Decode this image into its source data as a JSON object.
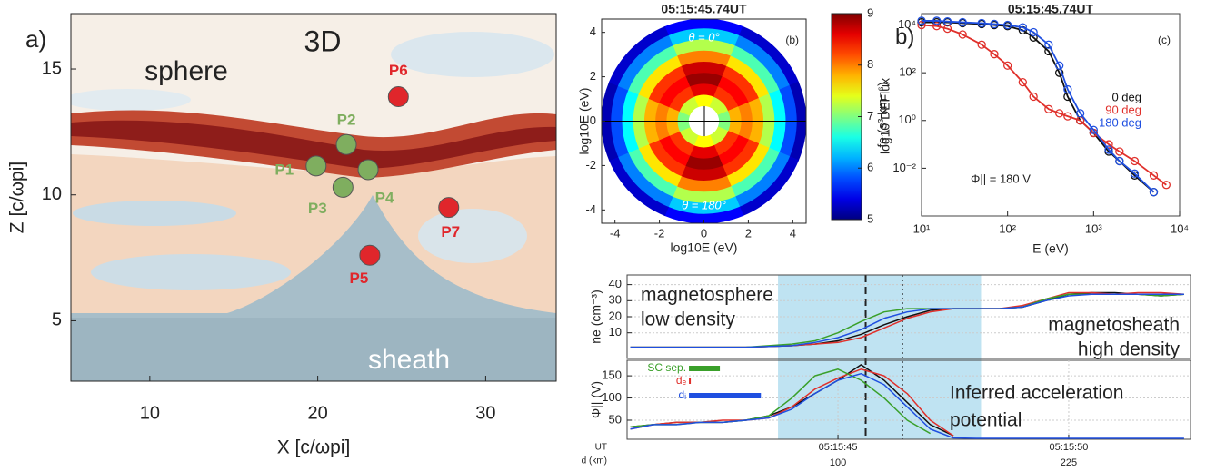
{
  "chart_data": [
    {
      "type": "scatter",
      "panel_label": "a)",
      "annotations": [
        "3D",
        "sphere",
        "sheath"
      ],
      "xlabel": "X [c/ωpi]",
      "ylabel": "Z [c/ωpi]",
      "xlim": [
        5.3,
        34.2
      ],
      "ylim": [
        2.6,
        17.2
      ],
      "xticks": [
        10,
        20,
        30
      ],
      "yticks": [
        5,
        10,
        15
      ],
      "labels": [
        "P1",
        "P2",
        "P3",
        "P4",
        "P5",
        "P6",
        "P7"
      ],
      "x": [
        19.9,
        21.7,
        21.5,
        23.0,
        23.1,
        24.8,
        27.8
      ],
      "y": [
        11.15,
        12.0,
        10.3,
        11.0,
        7.6,
        13.9,
        9.5
      ],
      "colors": [
        "#7fae5f",
        "#7fae5f",
        "#7fae5f",
        "#7fae5f",
        "#e0262b",
        "#e0262b",
        "#e0262b"
      ]
    },
    {
      "type": "polar",
      "title": "05:15:45.74UT",
      "tag": "(b)",
      "annotations": [
        "θ = 0°",
        "θ = 180°"
      ],
      "xlabel": "log10E (eV)",
      "ylabel": "log10E (eV)",
      "xlim": [
        -4.6,
        4.6
      ],
      "ylim": [
        -4.6,
        4.6
      ],
      "xticks": [
        -4,
        -2,
        0,
        2,
        4
      ],
      "yticks": [
        -4,
        -2,
        0,
        2,
        4
      ],
      "r": [
        0.7,
        1.2,
        1.7,
        2.2,
        2.7,
        3.2,
        3.7,
        4.2,
        4.6
      ],
      "values": [
        [
          7.5,
          7.3,
          7,
          7.3,
          7.5,
          7.3,
          7,
          7.3
        ],
        [
          8.6,
          8.3,
          7.8,
          8.3,
          8.6,
          8.3,
          7.8,
          8.3
        ],
        [
          8.9,
          8.5,
          8,
          8.5,
          8.9,
          8.5,
          8,
          8.5
        ],
        [
          8.7,
          8.3,
          7.8,
          8.3,
          8.7,
          8.3,
          7.8,
          8.3
        ],
        [
          8,
          7.6,
          7.2,
          7.6,
          8,
          7.6,
          7.2,
          7.6
        ],
        [
          7.2,
          6.8,
          6.5,
          6.8,
          7.2,
          6.8,
          6.5,
          6.8
        ],
        [
          6.3,
          6,
          5.8,
          6,
          6.3,
          6,
          5.8,
          6
        ],
        [
          5.5,
          5.3,
          5.2,
          5.3,
          5.5,
          5.3,
          5.2,
          5.3
        ]
      ],
      "clim": [
        5,
        9
      ],
      "cticks": [
        5,
        6,
        7,
        8,
        9
      ],
      "clabel": "log10 DEFlux"
    },
    {
      "type": "line",
      "panel_label": "b)",
      "title": "05:15:45.74UT",
      "tag": "(c)",
      "log": true,
      "xlabel": "E (eV)",
      "ylabel": "fe (s³ km⁻⁶)",
      "annotations": [
        "Φ|| = 180 V"
      ],
      "xlim": [
        10,
        10000
      ],
      "ylim": [
        0.0001,
        30000
      ],
      "xticks": [
        {
          "value": 10,
          "label": "10¹"
        },
        {
          "value": 100,
          "label": "10²"
        },
        {
          "value": 1000,
          "label": "10³"
        },
        {
          "value": 10000,
          "label": "10⁴"
        }
      ],
      "yticks": [
        {
          "value": 0.01,
          "label": "10⁻²"
        },
        {
          "value": 1,
          "label": "10⁰"
        },
        {
          "value": 100,
          "label": "10²"
        },
        {
          "value": 10000,
          "label": "10⁴"
        }
      ],
      "x": [
        10,
        15,
        20,
        30,
        50,
        70,
        100,
        150,
        200,
        300,
        400,
        500,
        700,
        1000,
        1500,
        2000,
        3000,
        5000,
        7000
      ],
      "series": [
        {
          "name": "0 deg",
          "color": "#111111",
          "values": [
            13000,
            13000,
            13000,
            12000,
            11000,
            10000,
            9000,
            6000,
            3000,
            800,
            100,
            10,
            1,
            0.3,
            0.05,
            0.02,
            0.005,
            0.001,
            null
          ]
        },
        {
          "name": "90 deg",
          "color": "#e0302b",
          "values": [
            10000,
            9000,
            7000,
            4000,
            1500,
            600,
            200,
            40,
            10,
            3,
            2,
            1.5,
            1,
            0.3,
            0.1,
            0.05,
            0.02,
            0.005,
            0.002
          ]
        },
        {
          "name": "180 deg",
          "color": "#1f4fe0",
          "values": [
            15000,
            15000,
            14000,
            13000,
            12000,
            11000,
            10000,
            8000,
            5000,
            1500,
            200,
            20,
            2,
            0.4,
            0.06,
            0.02,
            0.006,
            0.001,
            null
          ]
        }
      ]
    },
    {
      "type": "line",
      "ylabel": "ne (cm⁻³)",
      "annotations": [
        "magnetosphere",
        "low density",
        "magnetosheath",
        "high density"
      ],
      "xlim": [
        40.43,
        52.64
      ],
      "ylim": [
        -6,
        46
      ],
      "yticks": [
        10,
        20,
        30,
        40
      ],
      "grid": true,
      "shade": [
        43.7,
        48.1
      ],
      "vlines": [
        45.6,
        46.4
      ],
      "x": [
        40.5,
        41,
        41.5,
        42,
        42.5,
        43,
        43.5,
        44,
        44.5,
        45,
        45.5,
        46,
        46.5,
        47,
        47.5,
        48,
        48.5,
        49,
        49.5,
        50,
        50.5,
        51,
        51.5,
        52,
        52.5
      ],
      "series": [
        {
          "color": "#111111",
          "values": [
            1,
            1,
            1,
            1,
            1,
            1,
            1.5,
            2,
            3,
            5,
            9,
            15,
            20,
            24,
            25,
            25,
            25,
            26,
            30,
            34,
            35,
            35,
            34,
            33,
            34
          ]
        },
        {
          "color": "#e0302b",
          "values": [
            1,
            1,
            1,
            1,
            1,
            1,
            1.5,
            2,
            3,
            4,
            7,
            13,
            19,
            23,
            25,
            25,
            25,
            27,
            31,
            35,
            35,
            34,
            35,
            35,
            34
          ]
        },
        {
          "color": "#3aa02a",
          "values": [
            1,
            1,
            1,
            1,
            1,
            1,
            2,
            3,
            5,
            10,
            17,
            23,
            25,
            25,
            25,
            25,
            25,
            26,
            31,
            34,
            34,
            34,
            34,
            33,
            34
          ]
        },
        {
          "color": "#1f4fe0",
          "values": [
            1,
            1,
            1,
            1,
            1,
            1,
            1.5,
            2,
            4,
            7,
            12,
            19,
            23,
            25,
            25,
            25,
            25,
            26,
            30,
            33,
            34,
            34,
            34,
            34,
            34
          ]
        }
      ]
    },
    {
      "type": "line",
      "ylabel": "Φ|| (V)",
      "annotations": [
        "Inferred acceleration",
        "potential"
      ],
      "xlim": [
        40.43,
        52.64
      ],
      "ylim": [
        7,
        185
      ],
      "yticks": [
        50,
        100,
        150
      ],
      "grid": true,
      "xticks": [
        {
          "value": 45,
          "label": "05:15:45"
        },
        {
          "value": 50,
          "label": "05:15:50"
        }
      ],
      "dticks": [
        {
          "value": 45,
          "label": "100"
        },
        {
          "value": 50,
          "label": "225"
        }
      ],
      "xtick_title": "UT",
      "dtick_title": "d (km)",
      "scale_bars": [
        {
          "label": "SC sep.",
          "color": "#3aa02a",
          "x": [
            41.77,
            42.44
          ]
        },
        {
          "label": "dₑ",
          "color": "#e0302b",
          "x": [
            41.77,
            41.81
          ]
        },
        {
          "label": "dᵢ",
          "color": "#1f4fe0",
          "x": [
            41.77,
            43.33
          ]
        }
      ],
      "x": [
        40.5,
        41,
        41.5,
        42,
        42.5,
        43,
        43.5,
        44,
        44.5,
        45,
        45.5,
        46,
        46.5,
        47,
        47.5,
        48,
        48.5,
        49,
        49.5,
        50,
        50.5,
        51,
        51.5,
        52,
        52.5
      ],
      "series": [
        {
          "color": "#111111",
          "values": [
            35,
            40,
            45,
            45,
            45,
            50,
            60,
            80,
            110,
            140,
            175,
            140,
            90,
            40,
            15,
            null,
            null,
            null,
            null,
            null,
            null,
            null,
            null,
            null,
            null
          ]
        },
        {
          "color": "#e0302b",
          "values": [
            30,
            40,
            45,
            45,
            50,
            50,
            55,
            80,
            120,
            145,
            165,
            150,
            110,
            50,
            15,
            null,
            null,
            null,
            null,
            null,
            null,
            null,
            null,
            null,
            null
          ]
        },
        {
          "color": "#3aa02a",
          "values": [
            35,
            40,
            40,
            45,
            45,
            50,
            60,
            100,
            150,
            165,
            140,
            100,
            50,
            20,
            null,
            null,
            null,
            null,
            null,
            null,
            null,
            null,
            null,
            null,
            null
          ]
        },
        {
          "color": "#1f4fe0",
          "values": [
            30,
            40,
            40,
            45,
            45,
            50,
            55,
            75,
            110,
            140,
            155,
            130,
            80,
            30,
            10,
            9,
            9,
            9,
            9,
            9,
            9,
            9,
            9,
            9,
            9
          ]
        }
      ]
    }
  ]
}
